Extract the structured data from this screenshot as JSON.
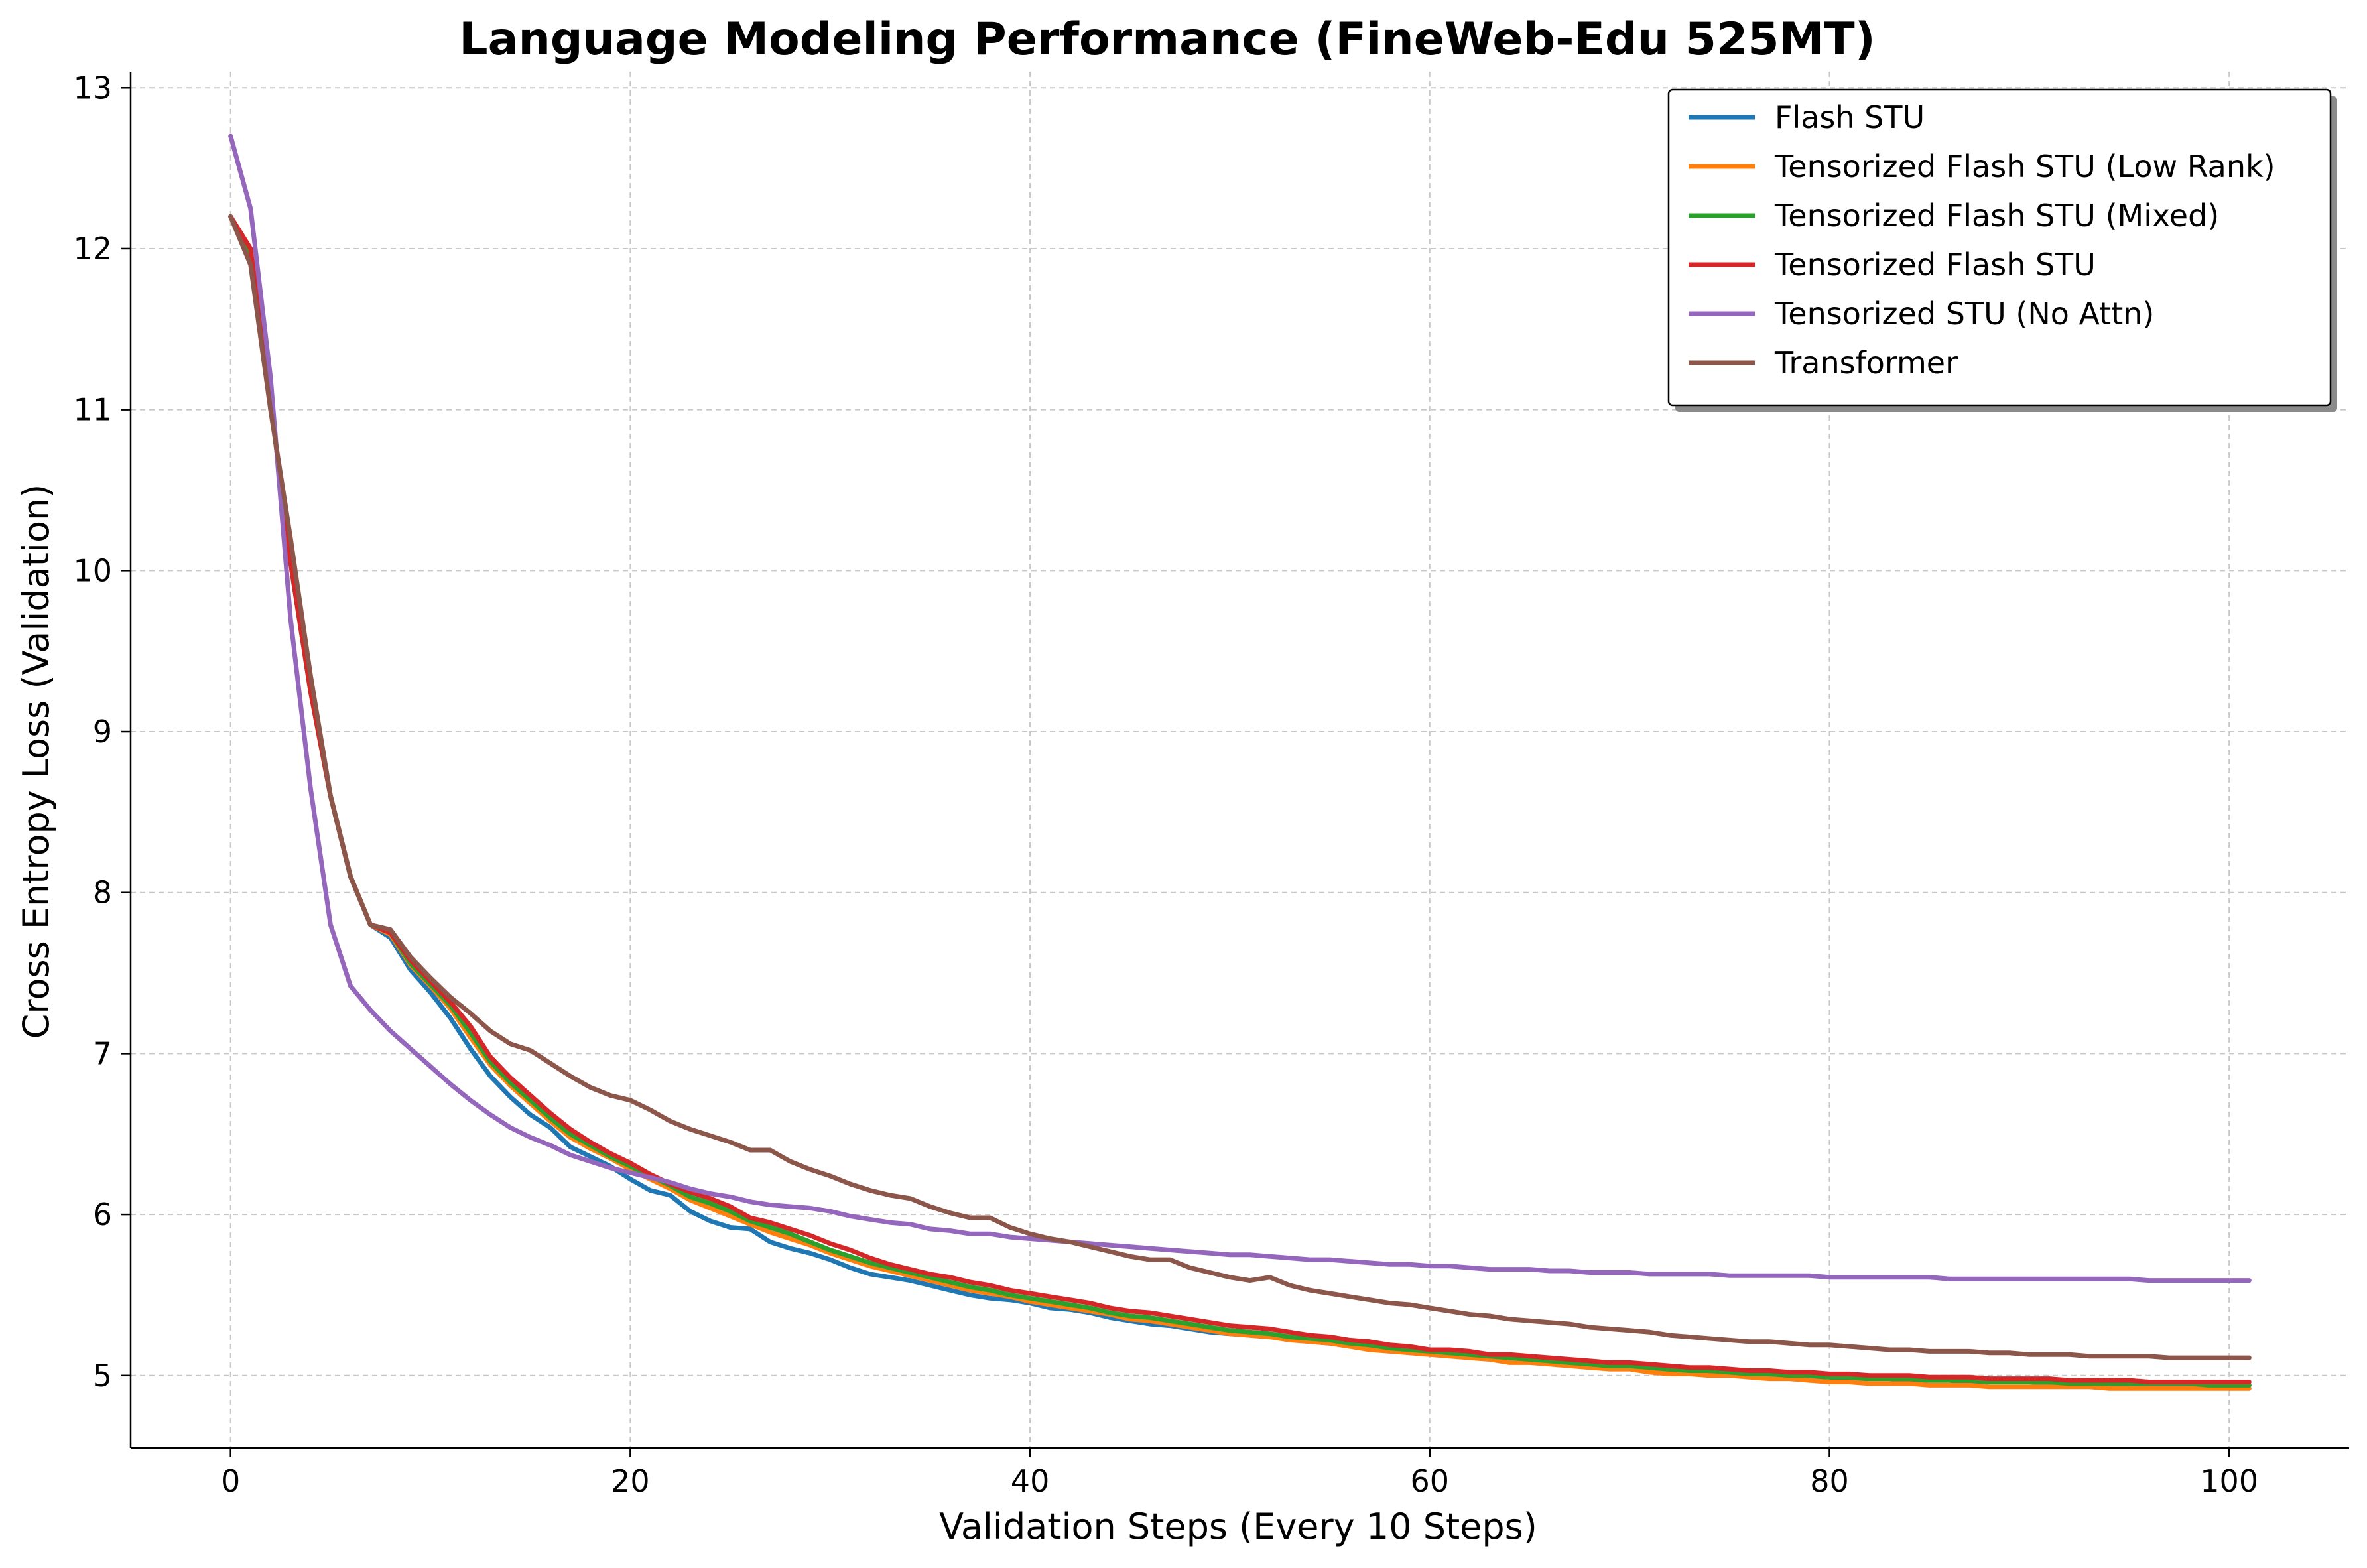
{
  "chart_data": {
    "type": "line",
    "title": "Language Modeling Performance (FineWeb-Edu 525MT)",
    "xlabel": "Validation Steps (Every 10 Steps)",
    "ylabel": "Cross Entropy Loss (Validation)",
    "xlim": [
      -5,
      106
    ],
    "ylim": [
      4.55,
      13.1
    ],
    "xticks": [
      0,
      20,
      40,
      60,
      80,
      100
    ],
    "yticks": [
      5,
      6,
      7,
      8,
      9,
      10,
      11,
      12,
      13
    ],
    "grid": true,
    "legend_position": "top-right",
    "x": [
      0,
      1,
      2,
      3,
      4,
      5,
      6,
      7,
      8,
      9,
      10,
      11,
      12,
      13,
      14,
      15,
      16,
      17,
      18,
      19,
      20,
      21,
      22,
      23,
      24,
      25,
      26,
      27,
      28,
      29,
      30,
      31,
      32,
      33,
      34,
      35,
      36,
      37,
      38,
      39,
      40,
      41,
      42,
      43,
      44,
      45,
      46,
      47,
      48,
      49,
      50,
      51,
      52,
      53,
      54,
      55,
      56,
      57,
      58,
      59,
      60,
      61,
      62,
      63,
      64,
      65,
      66,
      67,
      68,
      69,
      70,
      71,
      72,
      73,
      74,
      75,
      76,
      77,
      78,
      79,
      80,
      81,
      82,
      83,
      84,
      85,
      86,
      87,
      88,
      89,
      90,
      91,
      92,
      93,
      94,
      95,
      96,
      97,
      98,
      99,
      100,
      101
    ],
    "series": [
      {
        "name": "Flash STU",
        "color": "#1f77b4",
        "values": [
          12.2,
          11.95,
          11.05,
          10.05,
          9.25,
          8.6,
          8.1,
          7.8,
          7.72,
          7.52,
          7.38,
          7.22,
          7.03,
          6.86,
          6.73,
          6.62,
          6.54,
          6.42,
          6.36,
          6.3,
          6.22,
          6.15,
          6.12,
          6.02,
          5.96,
          5.92,
          5.91,
          5.83,
          5.79,
          5.76,
          5.72,
          5.67,
          5.63,
          5.61,
          5.59,
          5.56,
          5.53,
          5.5,
          5.48,
          5.47,
          5.45,
          5.42,
          5.41,
          5.39,
          5.36,
          5.34,
          5.32,
          5.31,
          5.29,
          5.27,
          5.26,
          5.25,
          5.24,
          5.23,
          5.21,
          5.2,
          5.19,
          5.18,
          5.17,
          5.15,
          5.14,
          5.13,
          5.12,
          5.11,
          5.1,
          5.09,
          5.08,
          5.07,
          5.06,
          5.05,
          5.05,
          5.04,
          5.03,
          5.02,
          5.02,
          5.01,
          5.01,
          5.0,
          5.0,
          4.99,
          4.99,
          4.98,
          4.98,
          4.98,
          4.97,
          4.97,
          4.97,
          4.96,
          4.96,
          4.96,
          4.96,
          4.95,
          4.95,
          4.95,
          4.95,
          4.95,
          4.94,
          4.94,
          4.94,
          4.94,
          4.94,
          4.94
        ]
      },
      {
        "name": "Tensorized Flash STU (Low Rank)",
        "color": "#ff7f0e",
        "values": [
          12.2,
          11.95,
          11.05,
          10.05,
          9.25,
          8.6,
          8.1,
          7.8,
          7.74,
          7.55,
          7.42,
          7.28,
          7.1,
          6.93,
          6.8,
          6.69,
          6.58,
          6.48,
          6.41,
          6.35,
          6.28,
          6.22,
          6.16,
          6.09,
          6.04,
          5.99,
          5.94,
          5.89,
          5.85,
          5.81,
          5.76,
          5.72,
          5.68,
          5.65,
          5.62,
          5.59,
          5.56,
          5.53,
          5.51,
          5.49,
          5.46,
          5.44,
          5.42,
          5.4,
          5.38,
          5.35,
          5.34,
          5.32,
          5.3,
          5.28,
          5.26,
          5.25,
          5.24,
          5.22,
          5.21,
          5.2,
          5.18,
          5.16,
          5.15,
          5.14,
          5.13,
          5.12,
          5.11,
          5.1,
          5.08,
          5.08,
          5.07,
          5.06,
          5.05,
          5.04,
          5.04,
          5.02,
          5.01,
          5.01,
          5.0,
          5.0,
          4.99,
          4.98,
          4.98,
          4.97,
          4.96,
          4.96,
          4.95,
          4.95,
          4.95,
          4.94,
          4.94,
          4.94,
          4.93,
          4.93,
          4.93,
          4.93,
          4.93,
          4.93,
          4.92,
          4.92,
          4.92,
          4.92,
          4.92,
          4.92,
          4.92,
          4.92
        ]
      },
      {
        "name": "Tensorized Flash STU (Mixed)",
        "color": "#2ca02c",
        "values": [
          12.2,
          11.95,
          11.05,
          10.05,
          9.25,
          8.6,
          8.1,
          7.8,
          7.75,
          7.56,
          7.43,
          7.3,
          7.13,
          6.95,
          6.82,
          6.71,
          6.6,
          6.5,
          6.43,
          6.36,
          6.3,
          6.24,
          6.18,
          6.11,
          6.07,
          6.02,
          5.96,
          5.92,
          5.88,
          5.83,
          5.78,
          5.74,
          5.7,
          5.67,
          5.64,
          5.61,
          5.58,
          5.55,
          5.53,
          5.5,
          5.48,
          5.46,
          5.44,
          5.42,
          5.39,
          5.37,
          5.36,
          5.34,
          5.32,
          5.3,
          5.28,
          5.27,
          5.26,
          5.24,
          5.23,
          5.22,
          5.2,
          5.19,
          5.17,
          5.16,
          5.15,
          5.14,
          5.13,
          5.12,
          5.11,
          5.1,
          5.09,
          5.08,
          5.07,
          5.06,
          5.06,
          5.05,
          5.04,
          5.03,
          5.03,
          5.02,
          5.01,
          5.01,
          5.0,
          5.0,
          4.99,
          4.99,
          4.98,
          4.98,
          4.98,
          4.97,
          4.97,
          4.97,
          4.96,
          4.96,
          4.96,
          4.96,
          4.95,
          4.95,
          4.95,
          4.95,
          4.95,
          4.95,
          4.95,
          4.94,
          4.94,
          4.94
        ]
      },
      {
        "name": "Tensorized Flash STU",
        "color": "#d62728",
        "values": [
          12.2,
          12.0,
          11.05,
          10.05,
          9.25,
          8.6,
          8.1,
          7.8,
          7.75,
          7.58,
          7.45,
          7.32,
          7.17,
          6.98,
          6.85,
          6.74,
          6.63,
          6.53,
          6.45,
          6.38,
          6.32,
          6.25,
          6.19,
          6.14,
          6.1,
          6.05,
          5.98,
          5.95,
          5.91,
          5.87,
          5.82,
          5.78,
          5.73,
          5.69,
          5.66,
          5.63,
          5.61,
          5.58,
          5.56,
          5.53,
          5.51,
          5.49,
          5.47,
          5.45,
          5.42,
          5.4,
          5.39,
          5.37,
          5.35,
          5.33,
          5.31,
          5.3,
          5.29,
          5.27,
          5.25,
          5.24,
          5.22,
          5.21,
          5.19,
          5.18,
          5.16,
          5.16,
          5.15,
          5.13,
          5.13,
          5.12,
          5.11,
          5.1,
          5.09,
          5.08,
          5.08,
          5.07,
          5.06,
          5.05,
          5.05,
          5.04,
          5.03,
          5.03,
          5.02,
          5.02,
          5.01,
          5.01,
          5.0,
          5.0,
          5.0,
          4.99,
          4.99,
          4.99,
          4.98,
          4.98,
          4.98,
          4.98,
          4.97,
          4.97,
          4.97,
          4.97,
          4.96,
          4.96,
          4.96,
          4.96,
          4.96,
          4.96
        ]
      },
      {
        "name": "Tensorized STU (No Attn)",
        "color": "#9467bd",
        "values": [
          12.7,
          12.25,
          11.2,
          9.7,
          8.65,
          7.8,
          7.42,
          7.27,
          7.14,
          7.03,
          6.92,
          6.81,
          6.71,
          6.62,
          6.54,
          6.48,
          6.43,
          6.37,
          6.33,
          6.29,
          6.26,
          6.23,
          6.2,
          6.16,
          6.13,
          6.11,
          6.08,
          6.06,
          6.05,
          6.04,
          6.02,
          5.99,
          5.97,
          5.95,
          5.94,
          5.91,
          5.9,
          5.88,
          5.88,
          5.86,
          5.85,
          5.84,
          5.83,
          5.82,
          5.81,
          5.8,
          5.79,
          5.78,
          5.77,
          5.76,
          5.75,
          5.75,
          5.74,
          5.73,
          5.72,
          5.72,
          5.71,
          5.7,
          5.69,
          5.69,
          5.68,
          5.68,
          5.67,
          5.66,
          5.66,
          5.66,
          5.65,
          5.65,
          5.64,
          5.64,
          5.64,
          5.63,
          5.63,
          5.63,
          5.63,
          5.62,
          5.62,
          5.62,
          5.62,
          5.62,
          5.61,
          5.61,
          5.61,
          5.61,
          5.61,
          5.61,
          5.6,
          5.6,
          5.6,
          5.6,
          5.6,
          5.6,
          5.6,
          5.6,
          5.6,
          5.6,
          5.59,
          5.59,
          5.59,
          5.59,
          5.59,
          5.59
        ]
      },
      {
        "name": "Transformer",
        "color": "#8c564b",
        "values": [
          12.2,
          11.9,
          11.0,
          10.2,
          9.35,
          8.6,
          8.1,
          7.8,
          7.77,
          7.6,
          7.47,
          7.35,
          7.25,
          7.14,
          7.06,
          7.02,
          6.94,
          6.86,
          6.79,
          6.74,
          6.71,
          6.65,
          6.58,
          6.53,
          6.49,
          6.45,
          6.4,
          6.4,
          6.33,
          6.28,
          6.24,
          6.19,
          6.15,
          6.12,
          6.1,
          6.05,
          6.01,
          5.98,
          5.98,
          5.92,
          5.88,
          5.85,
          5.83,
          5.8,
          5.77,
          5.74,
          5.72,
          5.72,
          5.67,
          5.64,
          5.61,
          5.59,
          5.61,
          5.56,
          5.53,
          5.51,
          5.49,
          5.47,
          5.45,
          5.44,
          5.42,
          5.4,
          5.38,
          5.37,
          5.35,
          5.34,
          5.33,
          5.32,
          5.3,
          5.29,
          5.28,
          5.27,
          5.25,
          5.24,
          5.23,
          5.22,
          5.21,
          5.21,
          5.2,
          5.19,
          5.19,
          5.18,
          5.17,
          5.16,
          5.16,
          5.15,
          5.15,
          5.15,
          5.14,
          5.14,
          5.13,
          5.13,
          5.13,
          5.12,
          5.12,
          5.12,
          5.12,
          5.11,
          5.11,
          5.11,
          5.11,
          5.11
        ]
      }
    ]
  }
}
